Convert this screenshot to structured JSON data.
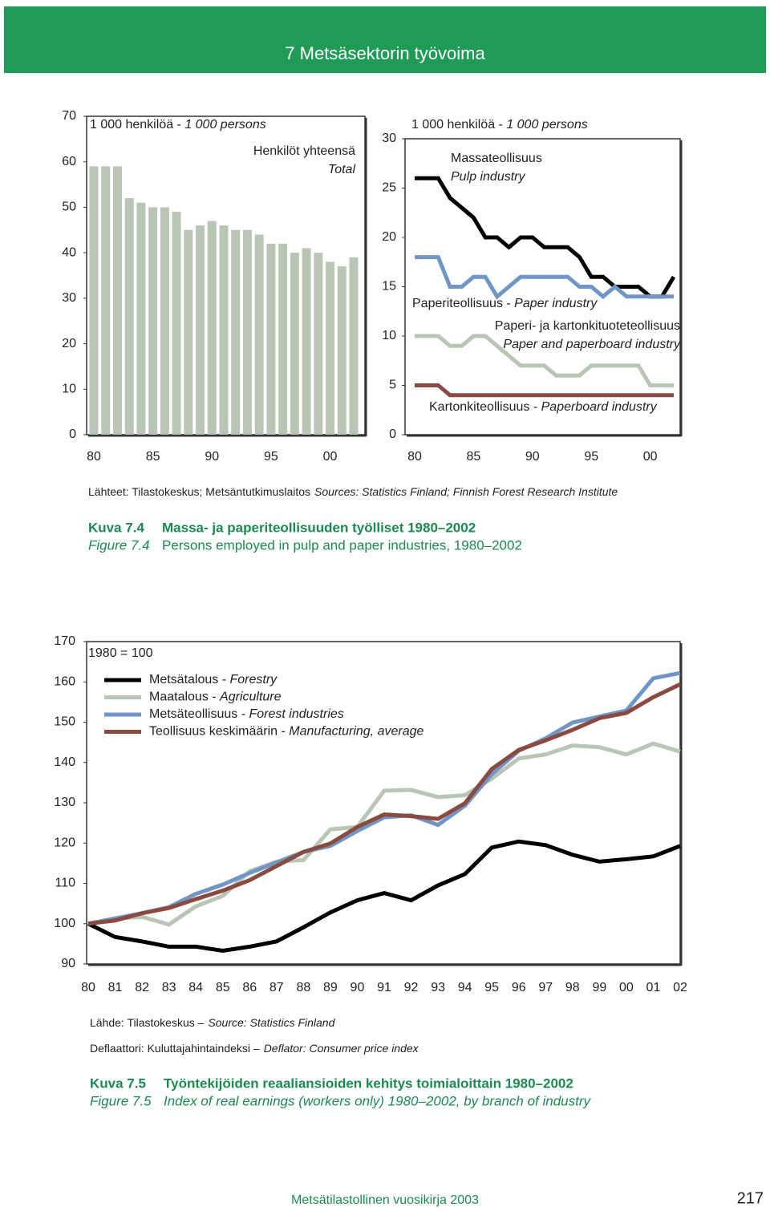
{
  "header": {
    "title": "7 Metsäsektorin työvoima"
  },
  "chart_data": [
    {
      "type": "bar",
      "unit": "1 000 henkilöä - 1 000 persons",
      "annotation": [
        "Henkilöt yhteensä",
        "Total"
      ],
      "categories": [
        "80",
        null,
        null,
        null,
        null,
        "85",
        null,
        null,
        null,
        null,
        "90",
        null,
        null,
        null,
        null,
        "95",
        null,
        null,
        null,
        null,
        "00",
        null,
        null
      ],
      "values": [
        59,
        59,
        59,
        52,
        51,
        50,
        50,
        49,
        45,
        46,
        47,
        46,
        45,
        45,
        44,
        42,
        42,
        40,
        41,
        40,
        38,
        37,
        39
      ],
      "color": "#b9c5b5",
      "ylim": [
        0,
        70
      ],
      "yticks": [
        0,
        10,
        20,
        30,
        40,
        50,
        60,
        70
      ],
      "grid": false
    },
    {
      "type": "line",
      "unit": "1 000 henkilöä - 1 000 persons",
      "categories": [
        "80",
        null,
        null,
        null,
        null,
        "85",
        null,
        null,
        null,
        null,
        "90",
        null,
        null,
        null,
        null,
        "95",
        null,
        null,
        null,
        null,
        "00",
        null,
        null
      ],
      "series": [
        {
          "name": [
            "Massateollisuus",
            "Pulp industry"
          ],
          "color": "#000000",
          "values": [
            26,
            26,
            26,
            24,
            23,
            22,
            20,
            20,
            19,
            20,
            20,
            19,
            19,
            19,
            18,
            16,
            16,
            15,
            15,
            15,
            14,
            14,
            16
          ]
        },
        {
          "name": "Paperiteollisuus - Paper industry",
          "color": "#7096c8",
          "values": [
            18,
            18,
            18,
            15,
            15,
            16,
            16,
            14,
            15,
            16,
            16,
            16,
            16,
            16,
            15,
            15,
            14,
            15,
            14,
            14,
            14,
            14,
            14
          ]
        },
        {
          "name": [
            "Paperi- ja kartonkituoteteollisuus",
            "Paper and paperboard industry"
          ],
          "color": "#b9c5b5",
          "values": [
            10,
            10,
            10,
            9,
            9,
            10,
            10,
            9,
            8,
            7,
            7,
            7,
            6,
            6,
            6,
            7,
            7,
            7,
            7,
            7,
            5,
            5,
            5
          ]
        },
        {
          "name": "Kartonkiteollisuus - Paperboard industry",
          "color": "#8b4a40",
          "values": [
            5,
            5,
            5,
            4,
            4,
            4,
            4,
            4,
            4,
            4,
            4,
            4,
            4,
            4,
            4,
            4,
            4,
            4,
            4,
            4,
            4,
            4,
            4
          ]
        }
      ],
      "ylim": [
        0,
        30
      ],
      "yticks": [
        0,
        5,
        10,
        15,
        20,
        25,
        30
      ],
      "grid": false
    },
    {
      "type": "line",
      "note": "1980 = 100",
      "legend": "top-left",
      "categories": [
        "80",
        "81",
        "82",
        "83",
        "84",
        "85",
        "86",
        "87",
        "88",
        "89",
        "90",
        "91",
        "92",
        "93",
        "94",
        "95",
        "96",
        "97",
        "98",
        "99",
        "00",
        "01",
        "02"
      ],
      "series": [
        {
          "name": "Metsätalous - Forestry",
          "color": "#000000",
          "values": [
            100,
            96.7,
            95.6,
            94.3,
            94.3,
            93.3,
            94.3,
            95.6,
            99.1,
            102.8,
            105.8,
            107.6,
            105.8,
            109.5,
            112.3,
            118.9,
            120.4,
            119.5,
            117.1,
            115.4,
            116,
            116.7,
            119.3
          ]
        },
        {
          "name": "Maatalous - Agriculture",
          "color": "#b9c5b5",
          "values": [
            100,
            101.3,
            101.7,
            99.8,
            104.3,
            106.9,
            113,
            115.4,
            115.8,
            123.4,
            124,
            133,
            133.2,
            131.4,
            131.9,
            136,
            141,
            142,
            144.2,
            143.8,
            142,
            144.7,
            142.7
          ]
        },
        {
          "name": "Metsäteollisuus - Forest industries",
          "color": "#7096c8",
          "values": [
            100,
            101.3,
            102.6,
            104.1,
            107.4,
            109.7,
            112.6,
            115.2,
            117.8,
            119.3,
            123,
            126.4,
            126.9,
            124.5,
            129.3,
            137.1,
            142.9,
            146,
            149.9,
            151.4,
            152.9,
            160.9,
            162.2
          ]
        },
        {
          "name": "Teollisuus keskimäärin - Manufacturing, average",
          "color": "#8b4a40",
          "values": [
            100,
            100.8,
            102.6,
            103.9,
            106.1,
            108.2,
            110.8,
            114.3,
            117.8,
            119.9,
            124,
            127.1,
            126.7,
            126,
            129.9,
            138.4,
            143.1,
            145.5,
            148.1,
            151,
            152.3,
            156.2,
            159.4
          ]
        }
      ],
      "ylim": [
        90,
        170
      ],
      "yticks": [
        90,
        100,
        110,
        120,
        130,
        140,
        150,
        160,
        170
      ],
      "grid": false
    }
  ],
  "figure_7_4": {
    "sources": {
      "fi": "Lähteet: Tilastokeskus; Metsäntutkimuslaitos",
      "en": "Sources: Statistics Finland; Finnish Forest Research Institute"
    },
    "label_fi": "Kuva 7.4",
    "title_fi": "Massa- ja paperiteollisuuden työlliset 1980–2002",
    "label_en": "Figure 7.4",
    "title_en": "Persons employed in pulp and paper industries, 1980–2002"
  },
  "figure_7_5": {
    "source": {
      "fi": "Lähde: Tilastokeskus –",
      "en": "Source: Statistics Finland"
    },
    "deflator": {
      "fi": "Deflaattori: Kuluttajahintaindeksi –",
      "en": "Deflator: Consumer price index"
    },
    "label_fi": "Kuva 7.5",
    "title_fi": "Työntekijöiden reaaliansioiden kehitys toimialoittain 1980–2002",
    "label_en": "Figure 7.5",
    "title_en": "Index of real earnings (workers only) 1980–2002, by branch of industry"
  },
  "footer": {
    "publication": "Metsätilastollinen vuosikirja 2003",
    "page": "217"
  }
}
